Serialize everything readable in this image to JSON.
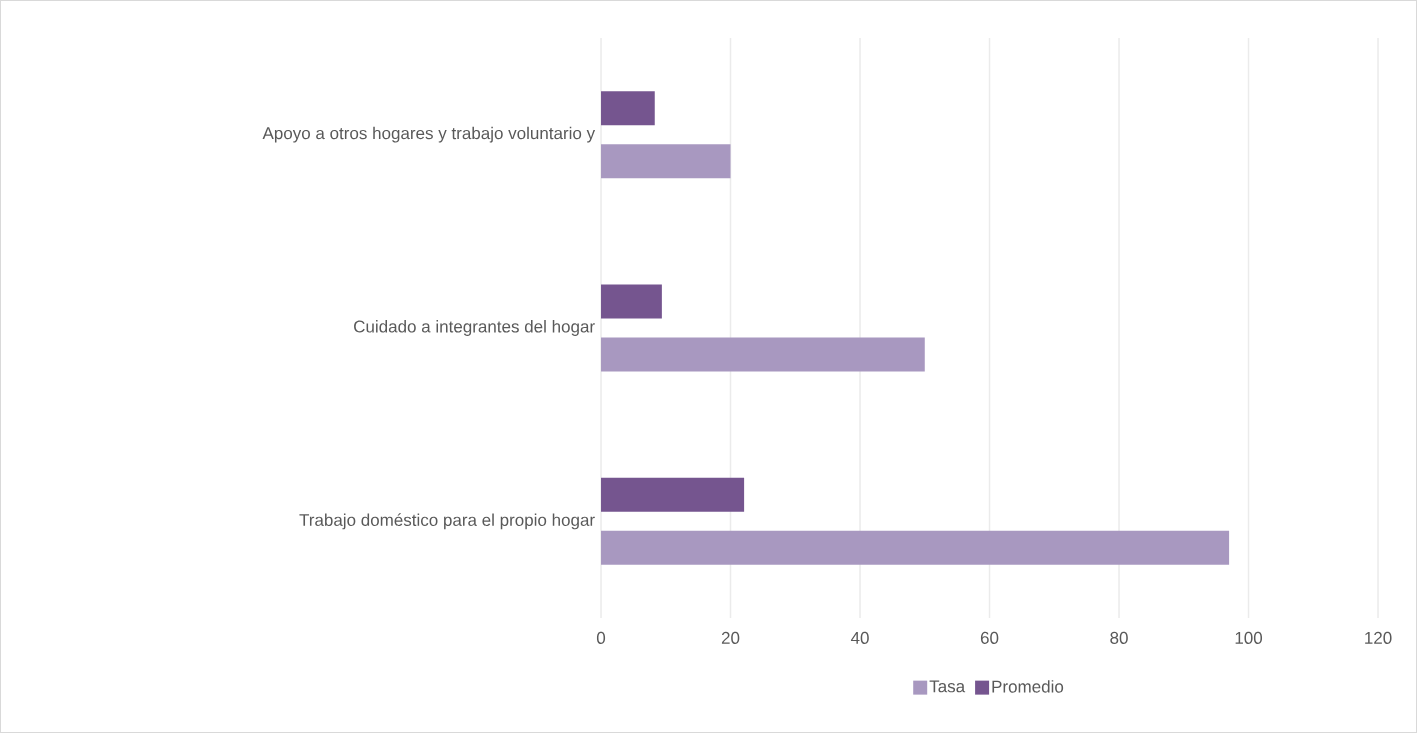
{
  "chart_data": {
    "type": "bar",
    "orientation": "horizontal",
    "categories": [
      "Apoyo a otros hogares y trabajo voluntario y",
      "Cuidado a integrantes del hogar",
      "Trabajo doméstico para el propio hogar"
    ],
    "series": [
      {
        "name": "Tasa",
        "color": "#a898c0",
        "values": [
          20,
          50,
          97
        ]
      },
      {
        "name": "Promedio",
        "color": "#75558f",
        "values": [
          8.3,
          9.4,
          22.1
        ]
      }
    ],
    "xlim": [
      0,
      120
    ],
    "xticks": [
      0,
      20,
      40,
      60,
      80,
      100,
      120
    ],
    "grid": "x",
    "legend": "bottom"
  }
}
